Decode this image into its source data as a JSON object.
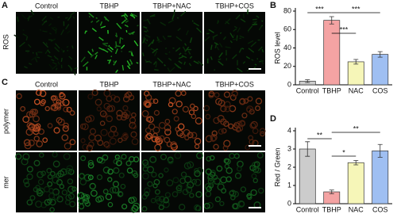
{
  "figure": {
    "panel_labels": [
      "A",
      "B",
      "C",
      "D"
    ],
    "columns": [
      "Control",
      "TBHP",
      "TBHP+NAC",
      "TBHP+COS"
    ],
    "rows_A": [
      "ROS"
    ],
    "rows_C": [
      "polymer",
      "mer"
    ]
  },
  "chart_data": [
    {
      "type": "bar",
      "ylabel": "ROS level",
      "categories": [
        "Control",
        "TBHP",
        "NAC",
        "COS"
      ],
      "values": [
        4,
        70,
        25,
        33
      ],
      "errors": [
        1.5,
        4,
        2.5,
        3
      ],
      "colors": [
        "#cccccc",
        "#f4a3a3",
        "#f6f6b8",
        "#9fbff2"
      ],
      "ylim": [
        0,
        80
      ],
      "yticks": [
        0,
        20,
        40,
        60,
        80
      ],
      "annotations": [
        {
          "text": "***",
          "between": [
            "Control",
            "TBHP"
          ]
        },
        {
          "text": "***",
          "between": [
            "TBHP",
            "NAC"
          ]
        },
        {
          "text": "***",
          "between": [
            "TBHP",
            "COS"
          ]
        }
      ]
    },
    {
      "type": "bar",
      "ylabel": "Red / Green",
      "categories": [
        "Control",
        "TBHP",
        "NAC",
        "COS"
      ],
      "values": [
        3.0,
        0.65,
        2.25,
        2.9
      ],
      "errors": [
        0.4,
        0.1,
        0.12,
        0.35
      ],
      "colors": [
        "#cccccc",
        "#f4a3a3",
        "#f6f6b8",
        "#9fbff2"
      ],
      "ylim": [
        0,
        4
      ],
      "yticks": [
        0,
        1,
        2,
        3,
        4
      ],
      "annotations": [
        {
          "text": "**",
          "between": [
            "Control",
            "TBHP"
          ]
        },
        {
          "text": "*",
          "between": [
            "TBHP",
            "NAC"
          ]
        },
        {
          "text": "**",
          "between": [
            "TBHP",
            "COS"
          ]
        }
      ]
    }
  ]
}
